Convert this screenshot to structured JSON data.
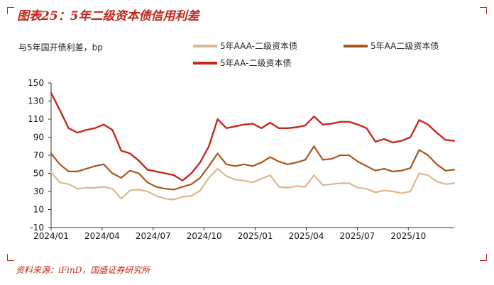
{
  "figure": {
    "title": "图表25：5年二级资本债信用利差",
    "source": "资料来源：iFinD，国盛证券研究所",
    "accent_color": "#c0261c"
  },
  "chart_data": {
    "type": "line",
    "title": "5年二级资本债信用利差",
    "ylabel": "与5年国开债利差，bp",
    "xlabel": "",
    "ylim": [
      -10,
      150
    ],
    "yticks": [
      -10,
      10,
      30,
      50,
      70,
      90,
      110,
      130,
      150
    ],
    "xlim": [
      "2024/01",
      "2025/12"
    ],
    "xticks": [
      "2024/01",
      "2024/04",
      "2024/07",
      "2024/10",
      "2025/01",
      "2025/04",
      "2025/07",
      "2025/10"
    ],
    "grid": false,
    "legend_position": "top",
    "x": [
      "2024/01a",
      "2024/01b",
      "2024/02a",
      "2024/02b",
      "2024/03a",
      "2024/03b",
      "2024/04a",
      "2024/04b",
      "2024/05a",
      "2024/05b",
      "2024/06a",
      "2024/06b",
      "2024/07a",
      "2024/07b",
      "2024/08a",
      "2024/08b",
      "2024/09a",
      "2024/09b",
      "2024/10a",
      "2024/10b",
      "2024/11a",
      "2024/11b",
      "2024/12a",
      "2024/12b",
      "2025/01a",
      "2025/01b",
      "2025/02a",
      "2025/02b",
      "2025/03a",
      "2025/03b",
      "2025/04a",
      "2025/04b",
      "2025/05a",
      "2025/05b",
      "2025/06a",
      "2025/06b",
      "2025/07a",
      "2025/07b",
      "2025/08a",
      "2025/08b",
      "2025/09a",
      "2025/09b",
      "2025/10a",
      "2025/10b",
      "2025/11a",
      "2025/11b",
      "2025/12a"
    ],
    "series": [
      {
        "name": "5年AAA-二级资本债",
        "color": "#dbb88f",
        "values": [
          51,
          40,
          38,
          33,
          34,
          34,
          35,
          33,
          22,
          31,
          32,
          30,
          25,
          22,
          21,
          24,
          25,
          31,
          45,
          55,
          47,
          43,
          42,
          40,
          44,
          48,
          35,
          34,
          36,
          35,
          48,
          37,
          38,
          39,
          39,
          34,
          33,
          29,
          31,
          30,
          28,
          30,
          50,
          48,
          41,
          38,
          39
        ]
      },
      {
        "name": "5年AA二级资本债",
        "color": "#a8561a",
        "values": [
          72,
          60,
          52,
          52,
          55,
          58,
          60,
          50,
          45,
          53,
          50,
          40,
          35,
          33,
          32,
          35,
          38,
          45,
          58,
          72,
          60,
          58,
          60,
          58,
          62,
          68,
          63,
          60,
          62,
          65,
          80,
          65,
          66,
          70,
          70,
          63,
          58,
          53,
          55,
          52,
          53,
          56,
          76,
          70,
          60,
          53,
          54
        ]
      },
      {
        "name": "5年AA-二级资本债",
        "color": "#c8281c",
        "values": [
          139,
          120,
          100,
          95,
          98,
          100,
          104,
          98,
          75,
          72,
          64,
          54,
          52,
          50,
          48,
          42,
          50,
          62,
          80,
          110,
          100,
          102,
          104,
          105,
          100,
          106,
          100,
          100,
          101,
          103,
          113,
          104,
          105,
          107,
          107,
          104,
          100,
          85,
          88,
          84,
          86,
          90,
          109,
          104,
          95,
          87,
          86
        ]
      }
    ]
  }
}
